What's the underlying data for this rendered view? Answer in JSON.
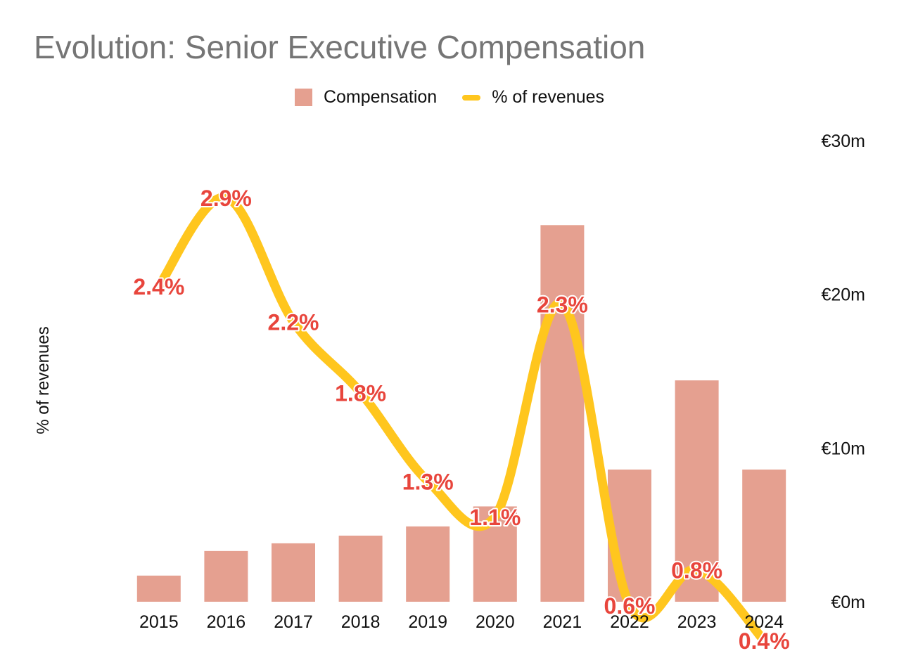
{
  "chart_data": {
    "type": "bar",
    "title": "Evolution: Senior Executive Compensation",
    "categories": [
      "2015",
      "2016",
      "2017",
      "2018",
      "2019",
      "2020",
      "2021",
      "2022",
      "2023",
      "2024"
    ],
    "series": [
      {
        "name": "Compensation",
        "type": "bar",
        "axis": "right",
        "color": "#e5a090",
        "values": [
          1.7,
          3.3,
          3.8,
          4.3,
          4.9,
          6.2,
          24.5,
          8.6,
          14.4,
          8.6
        ]
      },
      {
        "name": "% of revenues",
        "type": "line",
        "axis": "left",
        "color": "#ffc61e",
        "values": [
          2.4,
          2.9,
          2.2,
          1.8,
          1.3,
          1.1,
          2.3,
          0.6,
          0.8,
          0.4
        ],
        "labels": [
          "2.4%",
          "2.9%",
          "2.2%",
          "1.8%",
          "1.3%",
          "1.1%",
          "2.3%",
          "0.6%",
          "0.8%",
          "0.4%"
        ],
        "label_color": "#e8453c"
      }
    ],
    "ylabel": "% of revenues",
    "y2_ticks": [
      "€0m",
      "€10m",
      "€20m",
      "€30m"
    ],
    "y2lim": [
      0,
      30
    ],
    "legend": "top",
    "grid": false
  }
}
